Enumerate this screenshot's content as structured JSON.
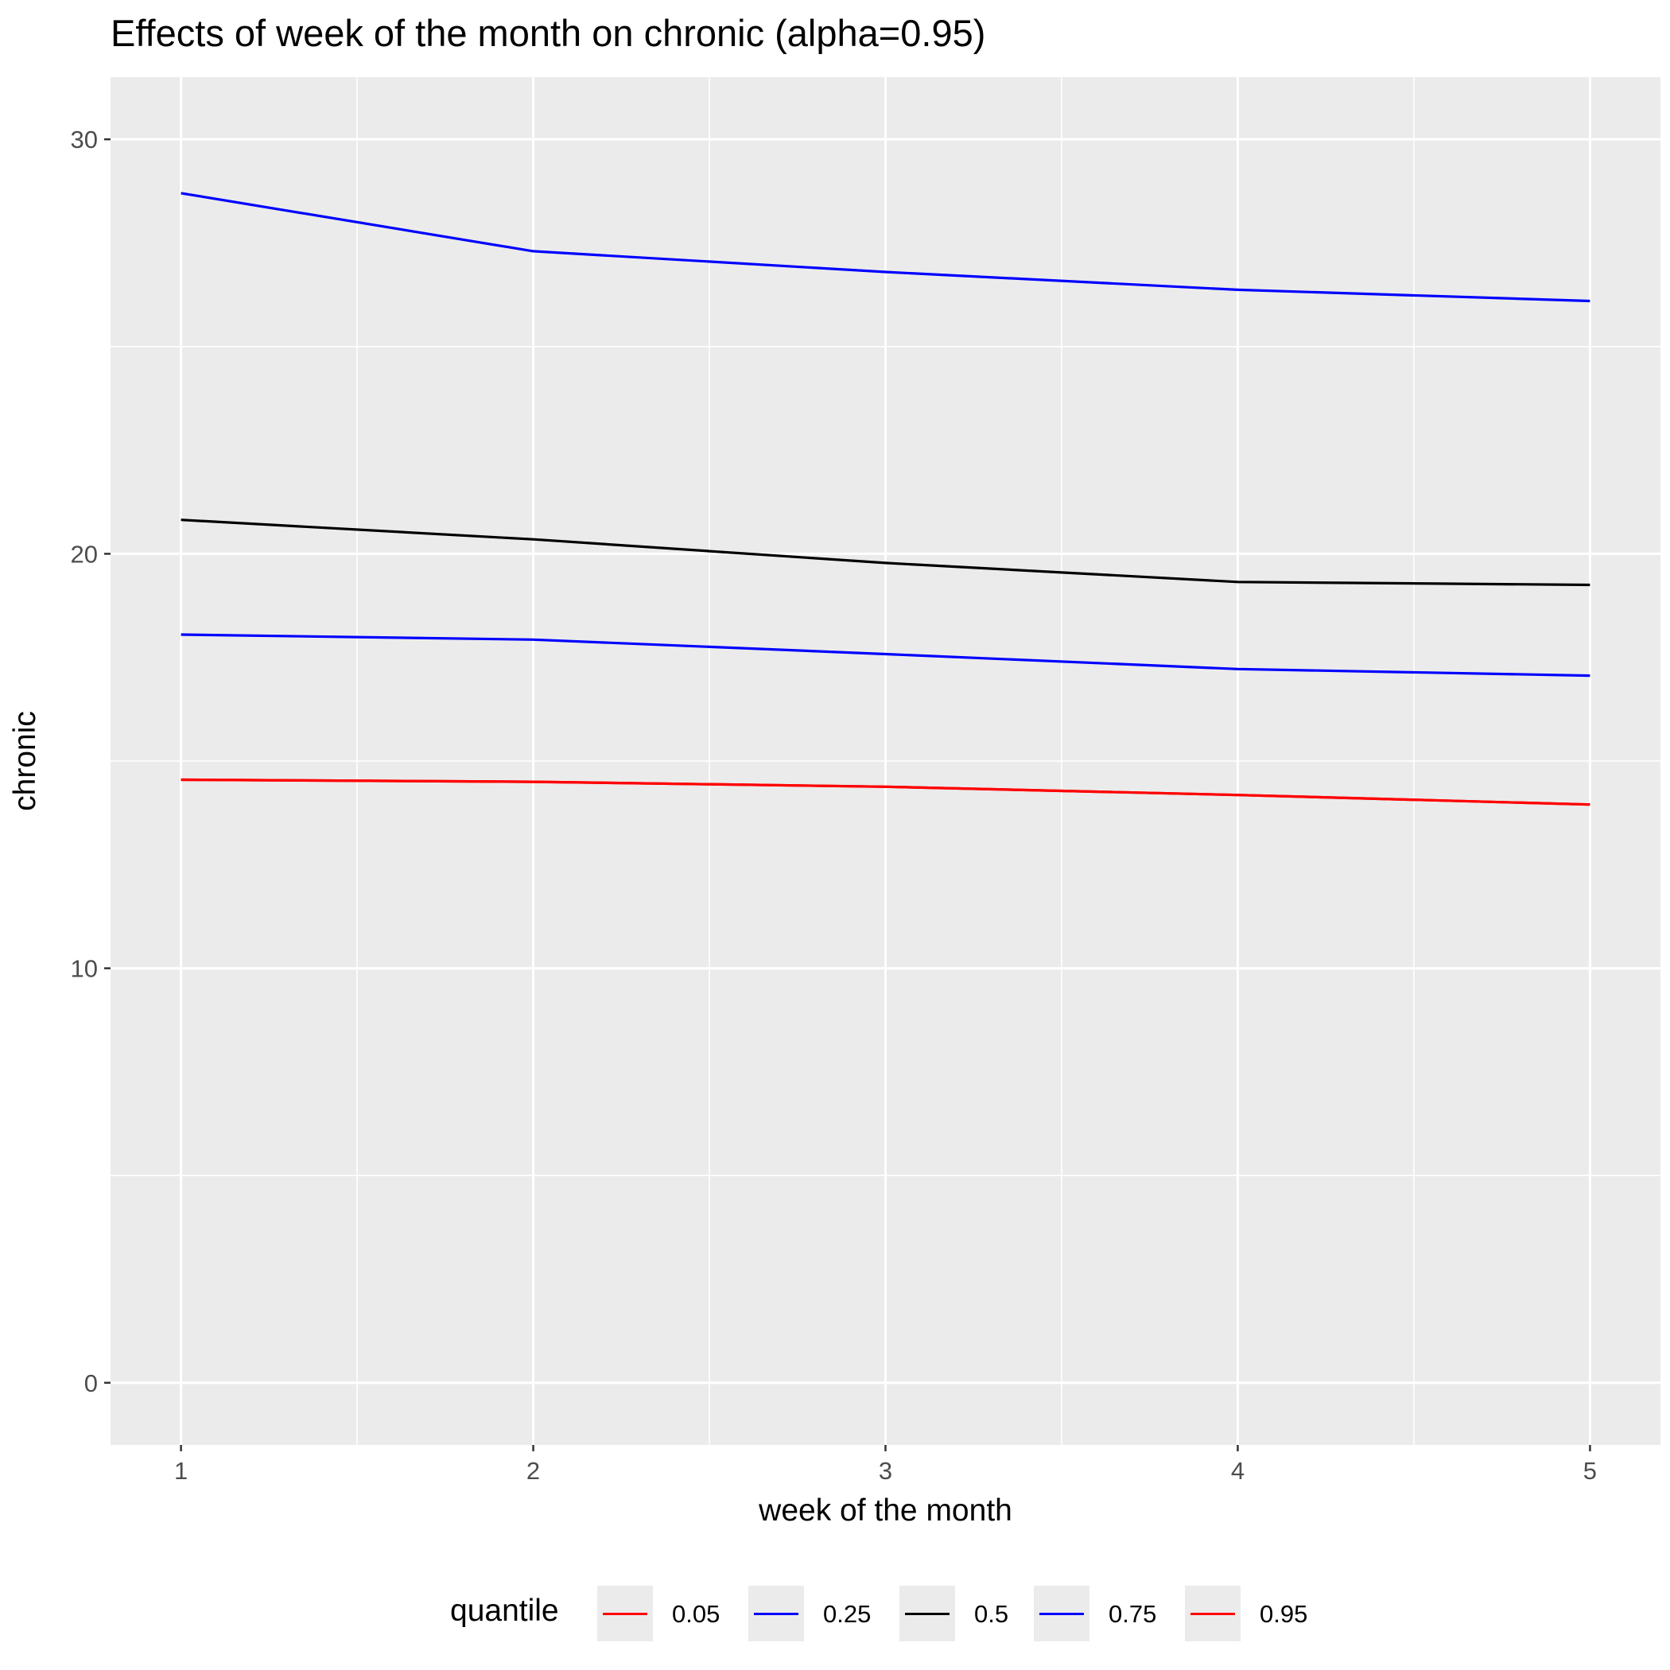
{
  "chart_data": {
    "type": "line",
    "title": "Effects of week of the month on chronic (alpha=0.95)",
    "xlabel": "week of the month",
    "ylabel": "chronic",
    "x": [
      1,
      2,
      3,
      4,
      5
    ],
    "x_ticks": [
      "1",
      "2",
      "3",
      "4",
      "5"
    ],
    "y_ticks": [
      "0",
      "10",
      "20",
      "30"
    ],
    "xlim": [
      0.8,
      5.2
    ],
    "ylim": [
      -1.5,
      31.5
    ],
    "grid": true,
    "legend": {
      "title": "quantile",
      "position": "bottom"
    },
    "series": [
      {
        "name": "0.05",
        "color": "#ff0000",
        "values": [
          14.55,
          14.5,
          14.38,
          14.18,
          13.95
        ]
      },
      {
        "name": "0.25",
        "color": "#0000ff",
        "values": [
          18.05,
          17.93,
          17.58,
          17.22,
          17.06
        ]
      },
      {
        "name": "0.5",
        "color": "#000000",
        "values": [
          20.82,
          20.35,
          19.78,
          19.32,
          19.25
        ]
      },
      {
        "name": "0.75",
        "color": "#0000ff",
        "values": [
          28.7,
          27.3,
          26.8,
          26.37,
          26.1
        ]
      },
      {
        "name": "0.95",
        "color": "#ff0000",
        "values": [
          14.55,
          14.5,
          14.38,
          14.18,
          13.95
        ]
      }
    ]
  }
}
